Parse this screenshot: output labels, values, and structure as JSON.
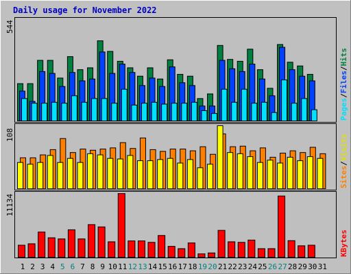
{
  "title": "Daily usage for November 2022",
  "colors": {
    "background": "#c0c0c0",
    "panel": "#bfbfbf",
    "title": "#0000c0",
    "pages": "#00e0ff",
    "files": "#0040ff",
    "hits": "#008040",
    "visits": "#ffff00",
    "sites": "#ff8000",
    "kbytes": "#ff0000",
    "weekend_label": "#008080"
  },
  "legend": {
    "pages": "Pages",
    "files": "Files",
    "hits": "Hits",
    "sites": "Sites",
    "visits": "Visits",
    "kbytes": "KBytes",
    "sep": "/"
  },
  "chart_data": [
    {
      "type": "bar",
      "panel": "pages-files-hits",
      "scale_label": "544",
      "ylim": [
        0,
        544
      ],
      "categories": [
        "1",
        "2",
        "3",
        "4",
        "5",
        "6",
        "7",
        "8",
        "9",
        "10",
        "11",
        "12",
        "13",
        "14",
        "15",
        "16",
        "17",
        "18",
        "19",
        "20",
        "21",
        "22",
        "23",
        "24",
        "25",
        "26",
        "27",
        "28",
        "29",
        "30",
        "31"
      ],
      "series": [
        {
          "name": "Hits",
          "values": [
            200,
            200,
            325,
            325,
            230,
            345,
            275,
            285,
            430,
            373,
            320,
            285,
            240,
            285,
            225,
            328,
            250,
            240,
            120,
            145,
            405,
            330,
            320,
            385,
            275,
            175,
            410,
            315,
            295,
            250,
            0
          ]
        },
        {
          "name": "Files",
          "values": [
            160,
            105,
            265,
            255,
            185,
            260,
            215,
            225,
            370,
            255,
            305,
            260,
            190,
            230,
            185,
            290,
            205,
            190,
            80,
            80,
            325,
            280,
            265,
            305,
            225,
            135,
            395,
            275,
            240,
            215,
            0
          ]
        },
        {
          "name": "Pages",
          "values": [
            120,
            95,
            95,
            100,
            95,
            135,
            100,
            120,
            120,
            95,
            170,
            85,
            95,
            100,
            90,
            95,
            95,
            100,
            55,
            40,
            170,
            100,
            170,
            95,
            100,
            45,
            220,
            95,
            120,
            60,
            0
          ]
        }
      ]
    },
    {
      "type": "bar",
      "panel": "sites-visits",
      "scale_label": "108",
      "ylim": [
        0,
        108
      ],
      "categories": [
        "1",
        "2",
        "3",
        "4",
        "5",
        "6",
        "7",
        "8",
        "9",
        "10",
        "11",
        "12",
        "13",
        "14",
        "15",
        "16",
        "17",
        "18",
        "19",
        "20",
        "21",
        "22",
        "23",
        "24",
        "25",
        "26",
        "27",
        "28",
        "29",
        "30",
        "31"
      ],
      "series": [
        {
          "name": "Sites",
          "values": [
            53,
            53,
            58,
            67,
            86,
            62,
            68,
            66,
            68,
            70,
            79,
            69,
            87,
            67,
            64,
            68,
            68,
            65,
            72,
            59,
            94,
            72,
            73,
            65,
            70,
            54,
            61,
            65,
            62,
            71,
            60
          ]
        },
        {
          "name": "Visits",
          "values": [
            45,
            42,
            45,
            57,
            45,
            52,
            45,
            60,
            58,
            52,
            51,
            57,
            48,
            48,
            50,
            52,
            44,
            50,
            36,
            42,
            108,
            62,
            60,
            55,
            45,
            49,
            44,
            54,
            48,
            55,
            52
          ]
        }
      ]
    },
    {
      "type": "bar",
      "panel": "kbytes",
      "scale_label": "11134",
      "ylim": [
        0,
        11134
      ],
      "categories": [
        "1",
        "2",
        "3",
        "4",
        "5",
        "6",
        "7",
        "8",
        "9",
        "10",
        "11",
        "12",
        "13",
        "14",
        "15",
        "16",
        "17",
        "18",
        "19",
        "20",
        "21",
        "22",
        "23",
        "24",
        "25",
        "26",
        "27",
        "28",
        "29",
        "30",
        "31"
      ],
      "series": [
        {
          "name": "KBytes",
          "values": [
            2100,
            2350,
            4400,
            3400,
            3200,
            4800,
            3200,
            5700,
            5300,
            2700,
            11134,
            2850,
            2850,
            2600,
            3800,
            1900,
            1500,
            2500,
            600,
            750,
            4700,
            2700,
            2600,
            3000,
            1500,
            1500,
            10700,
            2900,
            2000,
            2100,
            0
          ]
        }
      ]
    }
  ],
  "x_labels": [
    {
      "text": "1",
      "weekend": false
    },
    {
      "text": "2",
      "weekend": false
    },
    {
      "text": "3",
      "weekend": false
    },
    {
      "text": "4",
      "weekend": false
    },
    {
      "text": "5",
      "weekend": true
    },
    {
      "text": "6",
      "weekend": true
    },
    {
      "text": "7",
      "weekend": false
    },
    {
      "text": "8",
      "weekend": false
    },
    {
      "text": "9",
      "weekend": false
    },
    {
      "text": "10",
      "weekend": false
    },
    {
      "text": "11",
      "weekend": false
    },
    {
      "text": "12",
      "weekend": true
    },
    {
      "text": "13",
      "weekend": true
    },
    {
      "text": "14",
      "weekend": false
    },
    {
      "text": "15",
      "weekend": false
    },
    {
      "text": "16",
      "weekend": false
    },
    {
      "text": "17",
      "weekend": false
    },
    {
      "text": "18",
      "weekend": false
    },
    {
      "text": "19",
      "weekend": true
    },
    {
      "text": "20",
      "weekend": true
    },
    {
      "text": "21",
      "weekend": false
    },
    {
      "text": "22",
      "weekend": false
    },
    {
      "text": "23",
      "weekend": false
    },
    {
      "text": "24",
      "weekend": false
    },
    {
      "text": "25",
      "weekend": false
    },
    {
      "text": "26",
      "weekend": true
    },
    {
      "text": "27",
      "weekend": true
    },
    {
      "text": "28",
      "weekend": false
    },
    {
      "text": "29",
      "weekend": false
    },
    {
      "text": "30",
      "weekend": false
    },
    {
      "text": "31",
      "weekend": false
    }
  ]
}
